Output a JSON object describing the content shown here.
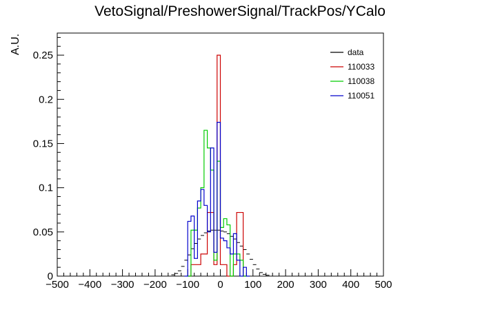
{
  "chart_data": {
    "type": "histogram",
    "title": "VetoSignal/PreshowerSignal/TrackPos/YCalo",
    "xlabel": "",
    "ylabel": "A.U.",
    "xlim": [
      -500,
      500
    ],
    "ylim": [
      0,
      0.275
    ],
    "x_ticks": [
      "-500",
      "-400",
      "-300",
      "-200",
      "-100",
      "0",
      "100",
      "200",
      "300",
      "400",
      "500"
    ],
    "y_ticks": [
      "0",
      "0.05",
      "0.1",
      "0.15",
      "0.2",
      "0.25"
    ],
    "legend": {
      "placement": "top-right",
      "entries": [
        "data",
        "110033",
        "110038",
        "110051"
      ]
    },
    "series": [
      {
        "name": "data",
        "color": "#000000",
        "style": "markers",
        "bins": [
          [
            -150,
            0.0015
          ],
          [
            -140,
            0.003
          ],
          [
            -130,
            0.006
          ],
          [
            -120,
            0.011
          ],
          [
            -110,
            0.018
          ],
          [
            -100,
            0.024
          ],
          [
            -90,
            0.031
          ],
          [
            -80,
            0.037
          ],
          [
            -70,
            0.042
          ],
          [
            -60,
            0.046
          ],
          [
            -50,
            0.049
          ],
          [
            -40,
            0.051
          ],
          [
            -30,
            0.052
          ],
          [
            -20,
            0.052
          ],
          [
            -10,
            0.052
          ],
          [
            0,
            0.051
          ],
          [
            10,
            0.05
          ],
          [
            20,
            0.048
          ],
          [
            30,
            0.045
          ],
          [
            40,
            0.042
          ],
          [
            50,
            0.038
          ],
          [
            60,
            0.034
          ],
          [
            70,
            0.03
          ],
          [
            80,
            0.025
          ],
          [
            90,
            0.019
          ],
          [
            100,
            0.013
          ],
          [
            110,
            0.008
          ],
          [
            120,
            0.004
          ],
          [
            130,
            0.002
          ],
          [
            140,
            0.001
          ]
        ]
      },
      {
        "name": "110033",
        "color": "#cc0000",
        "style": "step",
        "bins": [
          [
            -100,
            0.0
          ],
          [
            -90,
            0.013
          ],
          [
            -80,
            0.013
          ],
          [
            -70,
            0.013
          ],
          [
            -60,
            0.025
          ],
          [
            -50,
            0.025
          ],
          [
            -40,
            0.072
          ],
          [
            -30,
            0.072
          ],
          [
            -20,
            0.013
          ],
          [
            -10,
            0.25
          ],
          [
            0,
            0.013
          ],
          [
            10,
            0.013
          ],
          [
            20,
            0.0
          ],
          [
            30,
            0.0
          ],
          [
            40,
            0.013
          ],
          [
            50,
            0.072
          ],
          [
            60,
            0.072
          ],
          [
            70,
            0.0
          ]
        ]
      },
      {
        "name": "110038",
        "color": "#00cc00",
        "style": "step",
        "bins": [
          [
            -100,
            0.0
          ],
          [
            -90,
            0.052
          ],
          [
            -80,
            0.052
          ],
          [
            -70,
            0.077
          ],
          [
            -60,
            0.1
          ],
          [
            -50,
            0.165
          ],
          [
            -40,
            0.145
          ],
          [
            -30,
            0.12
          ],
          [
            -20,
            0.018
          ],
          [
            -10,
            0.13
          ],
          [
            0,
            0.055
          ],
          [
            10,
            0.065
          ],
          [
            20,
            0.058
          ],
          [
            30,
            0.0
          ],
          [
            40,
            0.025
          ],
          [
            50,
            0.025
          ],
          [
            60,
            0.018
          ],
          [
            70,
            0.0
          ]
        ]
      },
      {
        "name": "110051",
        "color": "#0000cc",
        "style": "step",
        "bins": [
          [
            -110,
            0.0
          ],
          [
            -100,
            0.062
          ],
          [
            -90,
            0.068
          ],
          [
            -80,
            0.02
          ],
          [
            -70,
            0.085
          ],
          [
            -60,
            0.098
          ],
          [
            -50,
            0.08
          ],
          [
            -40,
            0.05
          ],
          [
            -30,
            0.145
          ],
          [
            -20,
            0.027
          ],
          [
            -10,
            0.174
          ],
          [
            0,
            0.043
          ],
          [
            10,
            0.04
          ],
          [
            20,
            0.032
          ],
          [
            30,
            0.025
          ],
          [
            40,
            0.048
          ],
          [
            50,
            0.018
          ],
          [
            60,
            0.0
          ],
          [
            70,
            0.01
          ],
          [
            80,
            0.0
          ]
        ]
      }
    ]
  }
}
